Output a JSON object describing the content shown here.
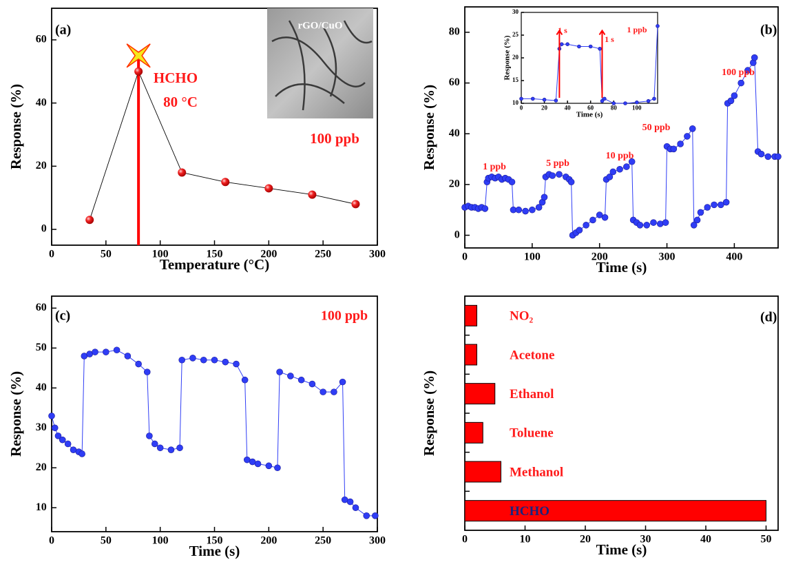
{
  "chart_data": [
    {
      "type": "line",
      "label": "(a)",
      "xlabel": "Temperature (°C)",
      "ylabel": "Response (%)",
      "xlim": [
        0,
        300
      ],
      "ylim": [
        -5,
        70
      ],
      "xticks": [
        0,
        50,
        100,
        150,
        200,
        250,
        300
      ],
      "yticks": [
        0,
        20,
        40,
        60
      ],
      "series": [
        {
          "color": "#e8161b",
          "line_color": "#000000",
          "x": [
            35,
            80,
            120,
            160,
            200,
            240,
            280
          ],
          "values": [
            3,
            50,
            18,
            15,
            13,
            11,
            8
          ]
        }
      ],
      "highlight": {
        "x": 80,
        "y": 55
      },
      "annotations": [
        "HCHO",
        "80 °C",
        "100 ppb",
        "rGO/CuO"
      ]
    },
    {
      "type": "line",
      "label": "(b)",
      "xlabel": "Time (s)",
      "ylabel": "Response (%)",
      "xlim": [
        0,
        465
      ],
      "ylim": [
        -5,
        90
      ],
      "xticks": [
        0,
        100,
        200,
        300,
        400
      ],
      "yticks": [
        0,
        20,
        40,
        60,
        80
      ],
      "series": [
        {
          "color": "#2f3df5",
          "line_color": "#2f3df5",
          "x": [
            0,
            5,
            10,
            15,
            20,
            25,
            30,
            33,
            35,
            40,
            45,
            50,
            55,
            60,
            65,
            70,
            72,
            80,
            90,
            100,
            110,
            115,
            118,
            120,
            125,
            130,
            140,
            150,
            155,
            158,
            160,
            165,
            170,
            180,
            190,
            200,
            208,
            210,
            215,
            220,
            230,
            240,
            248,
            250,
            255,
            260,
            270,
            280,
            290,
            298,
            300,
            305,
            310,
            320,
            330,
            338,
            340,
            345,
            350,
            360,
            370,
            380,
            388,
            390,
            395,
            400,
            410,
            420,
            428,
            430,
            435,
            440,
            450,
            460,
            465
          ],
          "values": [
            11,
            11.5,
            11,
            11,
            10.5,
            11,
            10.5,
            21,
            22.5,
            23,
            22.5,
            23,
            22,
            22.5,
            22,
            21,
            10,
            10,
            9.5,
            10,
            11,
            13,
            15,
            23,
            24,
            23.5,
            24,
            23,
            22,
            21,
            0,
            1,
            2,
            4,
            6,
            8,
            7,
            22,
            23,
            25,
            26,
            27,
            29,
            6,
            5,
            4,
            4,
            5,
            4.5,
            5,
            35,
            34,
            34,
            36,
            39,
            42,
            4,
            6,
            9,
            11,
            12,
            12,
            13,
            52,
            53,
            55,
            60,
            65,
            68,
            70,
            33,
            32,
            31,
            31,
            31
          ]
        }
      ],
      "annotations": [
        "1 ppb",
        "5 ppb",
        "10 ppb",
        "50 ppb",
        "100 ppb"
      ]
    },
    {
      "type": "line",
      "xlabel": "Time (s)",
      "ylabel": "Response (%)",
      "xlim": [
        0,
        118
      ],
      "ylim": [
        10,
        30
      ],
      "xticks": [
        0,
        20,
        40,
        60,
        80,
        100
      ],
      "yticks": [
        10,
        15,
        20,
        25,
        30
      ],
      "series": [
        {
          "color": "#2f3df5",
          "line_color": "#2f3df5",
          "x": [
            0,
            10,
            20,
            30,
            33,
            35,
            40,
            50,
            60,
            68,
            70,
            72,
            80,
            90,
            100,
            110,
            115,
            118
          ],
          "values": [
            11,
            11,
            10.8,
            10.6,
            22,
            23,
            23,
            22.5,
            22.5,
            22,
            10.5,
            11,
            10,
            10,
            10.2,
            10.5,
            11,
            27
          ]
        }
      ],
      "annotations": [
        "1 s",
        "1 s",
        "1 ppb"
      ]
    },
    {
      "type": "line",
      "label": "(c)",
      "xlabel": "Time (s)",
      "ylabel": "Response (%)",
      "xlim": [
        0,
        300
      ],
      "ylim": [
        4,
        63
      ],
      "xticks": [
        0,
        50,
        100,
        150,
        200,
        250,
        300
      ],
      "yticks": [
        10,
        20,
        30,
        40,
        50,
        60
      ],
      "series": [
        {
          "color": "#2f3df5",
          "line_color": "#2f3df5",
          "x": [
            0,
            3,
            6,
            10,
            15,
            20,
            25,
            28,
            30,
            35,
            40,
            50,
            60,
            70,
            80,
            88,
            90,
            95,
            100,
            110,
            118,
            120,
            130,
            140,
            150,
            160,
            170,
            178,
            180,
            185,
            190,
            200,
            208,
            210,
            220,
            230,
            240,
            250,
            260,
            268,
            270,
            275,
            280,
            290,
            298
          ],
          "values": [
            33,
            30,
            28,
            27,
            26,
            24.5,
            24,
            23.5,
            48,
            48.5,
            49,
            49,
            49.5,
            48,
            46,
            44,
            28,
            26,
            25,
            24.5,
            25,
            47,
            47.5,
            47,
            47,
            46.5,
            46,
            42,
            22,
            21.5,
            21,
            20.5,
            20,
            44,
            43,
            42,
            41,
            39,
            39,
            41.5,
            12,
            11.5,
            10,
            8,
            8
          ]
        }
      ],
      "annotations": [
        "100 ppb"
      ]
    },
    {
      "type": "barh",
      "label": "(d)",
      "xlabel": "Time (s)",
      "ylabel": "Response (%)",
      "xlim": [
        0,
        52
      ],
      "xticks": [
        0,
        10,
        20,
        30,
        40,
        50
      ],
      "categories": [
        "NO₂",
        "Acetone",
        "Ethanol",
        "Toluene",
        "Methanol",
        "HCHO"
      ],
      "values": [
        2,
        2,
        5,
        3,
        6,
        50
      ],
      "color": "#ff0000",
      "label_colors": [
        "#ff1a1a",
        "#ff1a1a",
        "#ff1a1a",
        "#ff1a1a",
        "#ff1a1a",
        "#1a237e"
      ]
    }
  ]
}
